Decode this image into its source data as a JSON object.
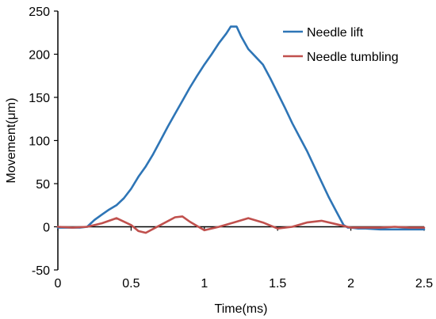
{
  "chart_data": {
    "type": "line",
    "title": "",
    "xlabel": "Time(ms)",
    "ylabel": "Movement(μm)",
    "xlim": [
      0,
      2.5
    ],
    "ylim": [
      -50,
      250
    ],
    "xticks": [
      0,
      0.5,
      1,
      1.5,
      2,
      2.5
    ],
    "xtick_labels": [
      "0",
      "0.5",
      "1",
      "1.5",
      "2",
      "2.5"
    ],
    "yticks": [
      -50,
      0,
      50,
      100,
      150,
      200,
      250
    ],
    "ytick_labels": [
      "-50",
      "0",
      "50",
      "100",
      "150",
      "200",
      "250"
    ],
    "grid": false,
    "legend_position": "top-right",
    "series": [
      {
        "name": "Needle lift",
        "color": "#2e75b6",
        "x": [
          0,
          0.1,
          0.15,
          0.2,
          0.25,
          0.3,
          0.35,
          0.4,
          0.45,
          0.5,
          0.55,
          0.6,
          0.65,
          0.7,
          0.75,
          0.8,
          0.85,
          0.9,
          0.95,
          1.0,
          1.05,
          1.1,
          1.15,
          1.18,
          1.22,
          1.25,
          1.3,
          1.35,
          1.4,
          1.45,
          1.5,
          1.55,
          1.6,
          1.65,
          1.7,
          1.75,
          1.8,
          1.85,
          1.9,
          1.95,
          1.98,
          2.0,
          2.05,
          2.1,
          2.2,
          2.3,
          2.4,
          2.5
        ],
        "y": [
          -1,
          -1,
          -1,
          0,
          8,
          14,
          20,
          25,
          33,
          44,
          58,
          70,
          84,
          100,
          116,
          131,
          146,
          161,
          175,
          188,
          200,
          213,
          224,
          232,
          232,
          221,
          206,
          197,
          188,
          172,
          155,
          138,
          120,
          104,
          88,
          70,
          52,
          34,
          18,
          2,
          -1,
          -1,
          -2,
          -2,
          -3,
          -3,
          -3,
          -3
        ]
      },
      {
        "name": "Needle tumbling",
        "color": "#c0504d",
        "x": [
          0,
          0.1,
          0.2,
          0.3,
          0.4,
          0.5,
          0.55,
          0.6,
          0.7,
          0.8,
          0.85,
          0.9,
          1.0,
          1.1,
          1.2,
          1.3,
          1.4,
          1.5,
          1.6,
          1.7,
          1.8,
          1.9,
          2.0,
          2.1,
          2.2,
          2.3,
          2.4,
          2.5
        ],
        "y": [
          0,
          -1,
          0,
          4,
          10,
          2,
          -5,
          -7,
          2,
          11,
          12,
          6,
          -4,
          0,
          5,
          10,
          5,
          -2,
          0,
          5,
          7,
          3,
          -1,
          -1,
          -1,
          0,
          -1,
          -1
        ]
      }
    ]
  }
}
